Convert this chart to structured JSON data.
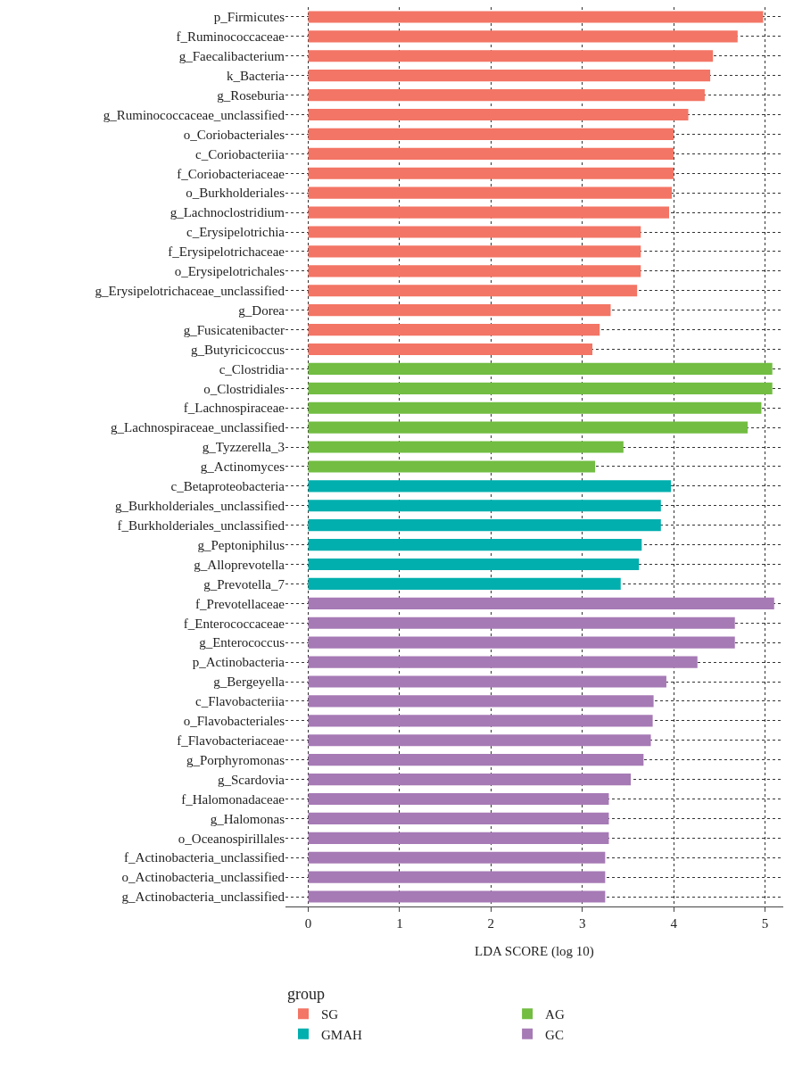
{
  "chart_data": {
    "type": "bar",
    "orientation": "horizontal",
    "xlabel": "LDA SCORE (log 10)",
    "legend_title": "group",
    "legend": "bottom",
    "grid": true,
    "xlim": [
      -0.25,
      5.2
    ],
    "xticks": [
      0,
      1,
      2,
      3,
      4,
      5
    ],
    "categories": [
      "p_Firmicutes",
      "f_Ruminococcaceae",
      "g_Faecalibacterium",
      "k_Bacteria",
      "g_Roseburia",
      "g_Ruminococcaceae_unclassified",
      "o_Coriobacteriales",
      "c_Coriobacteriia",
      "f_Coriobacteriaceae",
      "o_Burkholderiales",
      "g_Lachnoclostridium",
      "c_Erysipelotrichia",
      "f_Erysipelotrichaceae",
      "o_Erysipelotrichales",
      "g_Erysipelotrichaceae_unclassified",
      "g_Dorea",
      "g_Fusicatenibacter",
      "g_Butyricicoccus",
      "c_Clostridia",
      "o_Clostridiales",
      "f_Lachnospiraceae",
      "g_Lachnospiraceae_unclassified",
      "g_Tyzzerella_3",
      "g_Actinomyces",
      "c_Betaproteobacteria",
      "g_Burkholderiales_unclassified",
      "f_Burkholderiales_unclassified",
      "g_Peptoniphilus",
      "g_Alloprevotella",
      "g_Prevotella_7",
      "f_Prevotellaceae",
      "f_Enterococcaceae",
      "g_Enterococcus",
      "p_Actinobacteria",
      "g_Bergeyella",
      "c_Flavobacteriia",
      "o_Flavobacteriales",
      "f_Flavobacteriaceae",
      "g_Porphyromonas",
      "g_Scardovia",
      "f_Halomonadaceae",
      "g_Halomonas",
      "o_Oceanospirillales",
      "f_Actinobacteria_unclassified",
      "o_Actinobacteria_unclassified",
      "g_Actinobacteria_unclassified"
    ],
    "series": [
      {
        "name": "SG",
        "color": "#f37565",
        "values": [
          4.98,
          4.7,
          4.43,
          4.4,
          4.34,
          4.16,
          4.0,
          4.0,
          4.0,
          3.98,
          3.95,
          3.64,
          3.64,
          3.64,
          3.6,
          3.31,
          3.19,
          3.11,
          null,
          null,
          null,
          null,
          null,
          null,
          null,
          null,
          null,
          null,
          null,
          null,
          null,
          null,
          null,
          null,
          null,
          null,
          null,
          null,
          null,
          null,
          null,
          null,
          null,
          null,
          null,
          null
        ]
      },
      {
        "name": "AG",
        "color": "#72bd42",
        "values": [
          null,
          null,
          null,
          null,
          null,
          null,
          null,
          null,
          null,
          null,
          null,
          null,
          null,
          null,
          null,
          null,
          null,
          null,
          5.08,
          5.08,
          4.96,
          4.81,
          3.45,
          3.14,
          null,
          null,
          null,
          null,
          null,
          null,
          null,
          null,
          null,
          null,
          null,
          null,
          null,
          null,
          null,
          null,
          null,
          null,
          null,
          null,
          null,
          null
        ]
      },
      {
        "name": "GMAH",
        "color": "#00afae",
        "values": [
          null,
          null,
          null,
          null,
          null,
          null,
          null,
          null,
          null,
          null,
          null,
          null,
          null,
          null,
          null,
          null,
          null,
          null,
          null,
          null,
          null,
          null,
          null,
          null,
          3.97,
          3.86,
          3.86,
          3.65,
          3.62,
          3.42,
          null,
          null,
          null,
          null,
          null,
          null,
          null,
          null,
          null,
          null,
          null,
          null,
          null,
          null,
          null,
          null
        ]
      },
      {
        "name": "GC",
        "color": "#a67ab5",
        "values": [
          null,
          null,
          null,
          null,
          null,
          null,
          null,
          null,
          null,
          null,
          null,
          null,
          null,
          null,
          null,
          null,
          null,
          null,
          null,
          null,
          null,
          null,
          null,
          null,
          null,
          null,
          null,
          null,
          null,
          null,
          5.1,
          4.67,
          4.67,
          4.26,
          3.92,
          3.78,
          3.77,
          3.75,
          3.67,
          3.53,
          3.29,
          3.29,
          3.29,
          3.25,
          3.25,
          3.25
        ]
      }
    ]
  }
}
